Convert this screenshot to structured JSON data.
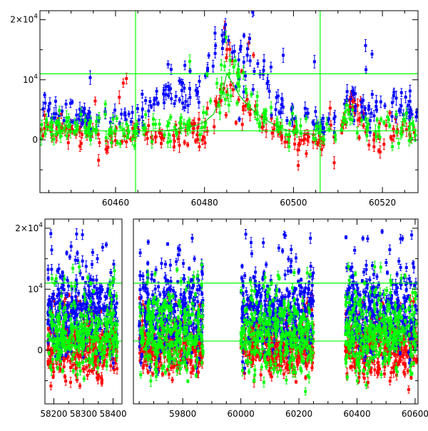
{
  "chart_data": [
    {
      "type": "scatter",
      "panel": "top",
      "title": "",
      "xlabel": "",
      "ylabel": "",
      "xlim": [
        60443,
        60528
      ],
      "ylim": [
        -8800,
        21500
      ],
      "x_ticks": [
        60460,
        60480,
        60500,
        60520
      ],
      "y_ticks": [
        {
          "value": 20000,
          "label": "2×10",
          "exp": "4"
        },
        {
          "value": 10000,
          "label": "10",
          "exp": "4"
        },
        {
          "value": 0,
          "label": "0",
          "exp": ""
        }
      ],
      "grid": false,
      "legend": "none",
      "series": [
        {
          "color": "#0000ff",
          "x": [
            60443,
            60445,
            60447,
            60449,
            60451,
            60453,
            60455,
            60458,
            60461,
            60464,
            60466,
            60468,
            60470,
            60472,
            60474,
            60476,
            60478,
            60480,
            60482,
            60484,
            60485,
            60486,
            60487,
            60488,
            60490,
            60492,
            60494,
            60496,
            60498,
            60500,
            60503,
            60506,
            60509,
            60511,
            60513,
            60515,
            60517,
            60519,
            60521,
            60523,
            60525,
            60527
          ],
          "y": [
            8000,
            4500,
            4000,
            4200,
            3800,
            3600,
            3500,
            3000,
            4200,
            4500,
            5000,
            5500,
            6000,
            7000,
            7500,
            8500,
            9500,
            11000,
            13000,
            15500,
            17500,
            16000,
            14500,
            13500,
            11500,
            10000,
            8500,
            7000,
            5500,
            4500,
            3500,
            3000,
            3200,
            6000,
            8000,
            5500,
            4500,
            4000,
            4500,
            5500,
            6000,
            5000
          ]
        },
        {
          "color": "#ff0000",
          "x": [
            60443,
            60445,
            60447,
            60449,
            60451,
            60453,
            60455,
            60458,
            60461,
            60464,
            60466,
            60468,
            60470,
            60472,
            60474,
            60476,
            60478,
            60480,
            60482,
            60484,
            60485,
            60486,
            60487,
            60488,
            60490,
            60492,
            60494,
            60496,
            60498,
            60500,
            60503,
            60506,
            60509,
            60511,
            60513,
            60515,
            60517,
            60519,
            60521,
            60523,
            60525,
            60527
          ],
          "y": [
            1500,
            1800,
            2000,
            1500,
            1200,
            1000,
            900,
            700,
            800,
            600,
            500,
            500,
            700,
            800,
            900,
            1000,
            1200,
            1800,
            3000,
            8000,
            11000,
            9500,
            8000,
            7000,
            5000,
            3500,
            2500,
            1500,
            1000,
            600,
            300,
            200,
            300,
            1500,
            6000,
            2500,
            800,
            600,
            800,
            1200,
            1500,
            1000
          ]
        },
        {
          "color": "#00ff00",
          "x": [
            60443,
            60445,
            60447,
            60449,
            60451,
            60453,
            60455,
            60458,
            60461,
            60464,
            60466,
            60468,
            60470,
            60472,
            60474,
            60476,
            60478,
            60480,
            60482,
            60484,
            60485,
            60486,
            60487,
            60488,
            60490,
            60492,
            60494,
            60496,
            60498,
            60500,
            60503,
            60506,
            60509,
            60511,
            60513,
            60515,
            60517,
            60519,
            60521,
            60523,
            60525,
            60527
          ],
          "y": [
            1500,
            1800,
            2200,
            2000,
            1800,
            1600,
            1500,
            1400,
            1500,
            1300,
            1400,
            1500,
            1700,
            1900,
            2100,
            2400,
            2800,
            3500,
            5000,
            9000,
            13000,
            11500,
            10000,
            8500,
            6500,
            5000,
            3800,
            2800,
            2000,
            1500,
            1200,
            1000,
            1100,
            2500,
            5500,
            3000,
            1800,
            1500,
            1700,
            2000,
            2300,
            1800
          ]
        }
      ],
      "vertical_lines": [
        60464.5,
        60506
      ],
      "horizontal_lines": [
        11000,
        1500
      ]
    },
    {
      "type": "scatter",
      "panel": "bottom",
      "title": "",
      "xlabel": "",
      "ylabel": "",
      "segments": [
        {
          "xlim": [
            58170,
            58430
          ],
          "x_ticks": [
            58200,
            58300,
            58400
          ]
        },
        {
          "xlim": [
            59630,
            60610
          ],
          "x_ticks": [
            59800,
            60000,
            60200,
            60400,
            60600
          ]
        }
      ],
      "ylim": [
        -8800,
        21500
      ],
      "y_ticks": [
        {
          "value": 20000,
          "label": "2×10",
          "exp": "4"
        },
        {
          "value": 10000,
          "label": "10",
          "exp": "4"
        },
        {
          "value": 0,
          "label": "0",
          "exp": ""
        }
      ],
      "grid": false,
      "legend": "none",
      "observing_seasons": [
        [
          58180,
          58415
        ],
        [
          59650,
          59870
        ],
        [
          60000,
          60250
        ],
        [
          60360,
          60605
        ]
      ],
      "series": [
        {
          "color": "#0000ff",
          "level": 6000,
          "spread": 7000
        },
        {
          "color": "#ff0000",
          "level": 500,
          "spread": 4500
        },
        {
          "color": "#00ff00",
          "level": 2500,
          "spread": 6000
        }
      ],
      "horizontal_lines": [
        11000,
        1500
      ]
    }
  ]
}
